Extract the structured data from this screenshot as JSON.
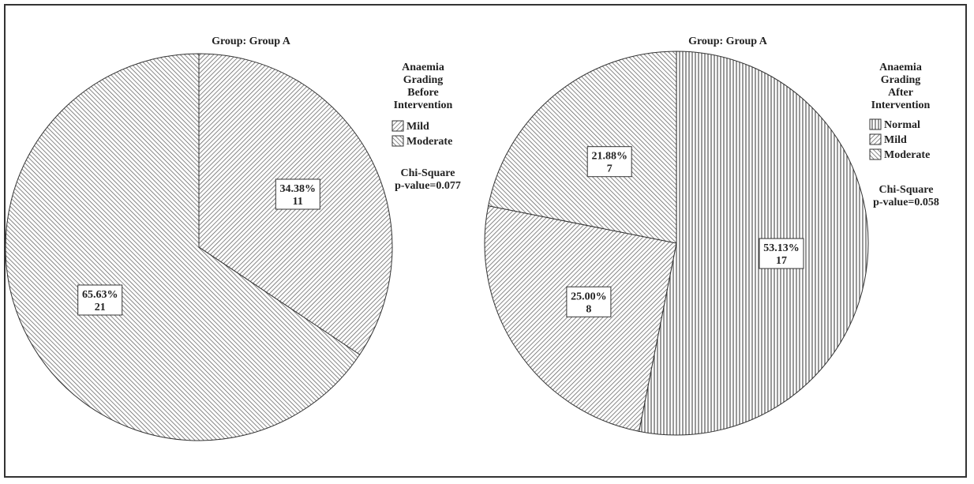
{
  "chart_data": [
    {
      "type": "pie",
      "title": "Group: Group A",
      "legend_title": [
        "Anaemia",
        "Grading",
        "Before",
        "Intervention"
      ],
      "slices": [
        {
          "category": "Mild",
          "percent": 34.38,
          "percent_label": "34.38%",
          "count": 11,
          "count_label": "11",
          "pattern": "diag-up"
        },
        {
          "category": "Moderate",
          "percent": 65.63,
          "percent_label": "65.63%",
          "count": 21,
          "count_label": "21",
          "pattern": "diag-down"
        }
      ],
      "legend": [
        {
          "label": "Mild",
          "pattern": "diag-up"
        },
        {
          "label": "Moderate",
          "pattern": "diag-down"
        }
      ],
      "stat_lines": [
        "Chi-Square",
        "p-value=0.077"
      ],
      "legend_placement": "right"
    },
    {
      "type": "pie",
      "title": "Group: Group A",
      "legend_title": [
        "Anaemia",
        "Grading",
        "After",
        "Intervention"
      ],
      "slices": [
        {
          "category": "Normal",
          "percent": 53.13,
          "percent_label": "53.13%",
          "count": 17,
          "count_label": "17",
          "pattern": "vertical"
        },
        {
          "category": "Mild",
          "percent": 25.0,
          "percent_label": "25.00%",
          "count": 8,
          "count_label": "8",
          "pattern": "diag-up"
        },
        {
          "category": "Moderate",
          "percent": 21.88,
          "percent_label": "21.88%",
          "count": 7,
          "count_label": "7",
          "pattern": "diag-down"
        }
      ],
      "legend": [
        {
          "label": "Normal",
          "pattern": "vertical"
        },
        {
          "label": "Mild",
          "pattern": "diag-up"
        },
        {
          "label": "Moderate",
          "pattern": "diag-down"
        }
      ],
      "stat_lines": [
        "Chi-Square",
        "p-value=0.058"
      ],
      "legend_placement": "right"
    }
  ]
}
